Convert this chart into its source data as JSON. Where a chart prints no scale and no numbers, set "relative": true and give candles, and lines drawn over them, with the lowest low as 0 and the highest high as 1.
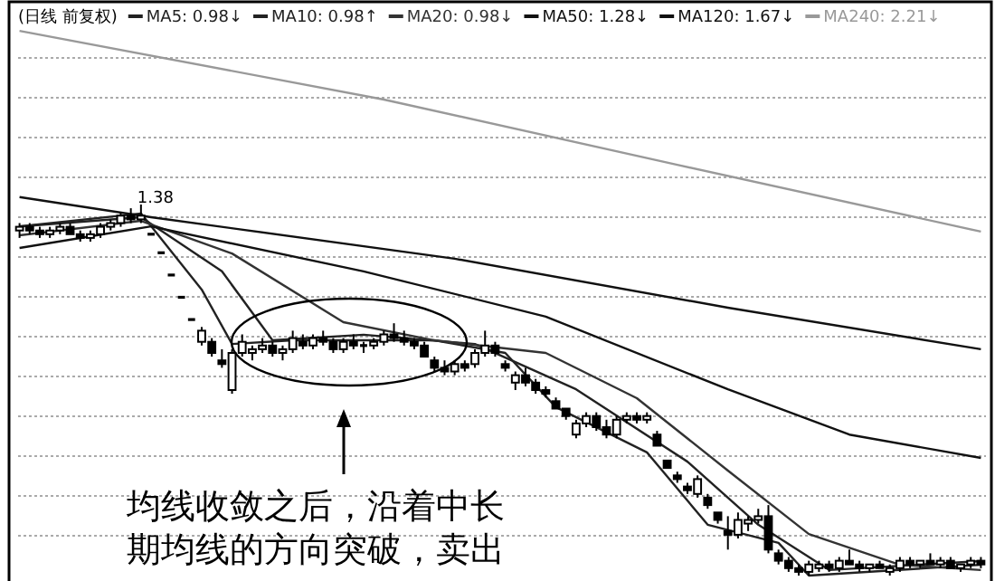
{
  "chart_data": {
    "type": "candlestick",
    "title": "(日线 前复权)",
    "relative": true,
    "grid": "y",
    "legend": "top left",
    "categories": [
      null,
      null,
      null,
      null,
      null,
      null,
      null,
      null,
      null,
      null,
      null,
      null,
      null,
      null,
      null,
      null,
      null,
      null,
      null,
      null,
      null,
      null,
      null,
      null,
      null,
      null,
      null,
      null,
      null,
      null,
      null,
      null,
      null,
      null,
      null,
      null,
      null,
      null,
      null,
      null,
      null,
      null,
      null,
      null,
      null,
      null,
      null,
      null,
      null,
      null,
      null,
      null,
      null,
      null,
      null,
      null,
      null,
      null,
      null,
      null,
      null,
      null,
      null,
      null,
      null,
      null,
      null,
      null,
      null,
      null,
      null,
      null,
      null,
      null,
      null,
      null,
      null,
      null,
      null,
      null,
      null,
      null,
      null,
      null,
      null,
      null,
      null,
      null,
      null,
      null,
      null,
      null,
      null,
      null,
      null,
      null
    ],
    "ohlc": [
      [
        0.93,
        0.95,
        0.91,
        0.94
      ],
      [
        0.94,
        0.95,
        0.92,
        0.93
      ],
      [
        0.93,
        0.94,
        0.91,
        0.92
      ],
      [
        0.92,
        0.94,
        0.91,
        0.93
      ],
      [
        0.93,
        0.95,
        0.92,
        0.94
      ],
      [
        0.94,
        0.95,
        0.92,
        0.92
      ],
      [
        0.92,
        0.93,
        0.9,
        0.91
      ],
      [
        0.91,
        0.93,
        0.9,
        0.92
      ],
      [
        0.92,
        0.95,
        0.91,
        0.94
      ],
      [
        0.94,
        0.96,
        0.93,
        0.95
      ],
      [
        0.95,
        0.98,
        0.94,
        0.97
      ],
      [
        0.97,
        0.99,
        0.95,
        0.96
      ],
      [
        0.96,
        1.0,
        0.95,
        0.97
      ],
      [
        0.92,
        0.92,
        0.92,
        0.92
      ],
      [
        0.87,
        0.87,
        0.87,
        0.87
      ],
      [
        0.81,
        0.81,
        0.81,
        0.81
      ],
      [
        0.75,
        0.75,
        0.75,
        0.75
      ],
      [
        0.69,
        0.69,
        0.69,
        0.69
      ],
      [
        0.63,
        0.67,
        0.62,
        0.66
      ],
      [
        0.63,
        0.64,
        0.59,
        0.6
      ],
      [
        0.58,
        0.61,
        0.56,
        0.57
      ],
      [
        0.5,
        0.61,
        0.49,
        0.6
      ],
      [
        0.6,
        0.65,
        0.59,
        0.63
      ],
      [
        0.6,
        0.62,
        0.58,
        0.61
      ],
      [
        0.61,
        0.64,
        0.6,
        0.62
      ],
      [
        0.62,
        0.63,
        0.59,
        0.6
      ],
      [
        0.6,
        0.62,
        0.58,
        0.61
      ],
      [
        0.61,
        0.66,
        0.6,
        0.64
      ],
      [
        0.63,
        0.65,
        0.61,
        0.62
      ],
      [
        0.62,
        0.65,
        0.61,
        0.64
      ],
      [
        0.64,
        0.66,
        0.62,
        0.63
      ],
      [
        0.63,
        0.64,
        0.6,
        0.61
      ],
      [
        0.61,
        0.64,
        0.6,
        0.63
      ],
      [
        0.63,
        0.65,
        0.61,
        0.62
      ],
      [
        0.62,
        0.63,
        0.6,
        0.62
      ],
      [
        0.62,
        0.64,
        0.61,
        0.63
      ],
      [
        0.63,
        0.66,
        0.62,
        0.65
      ],
      [
        0.65,
        0.68,
        0.63,
        0.64
      ],
      [
        0.64,
        0.66,
        0.62,
        0.63
      ],
      [
        0.63,
        0.64,
        0.61,
        0.62
      ],
      [
        0.62,
        0.63,
        0.59,
        0.59
      ],
      [
        0.58,
        0.59,
        0.55,
        0.56
      ],
      [
        0.56,
        0.58,
        0.54,
        0.55
      ],
      [
        0.55,
        0.58,
        0.54,
        0.57
      ],
      [
        0.57,
        0.58,
        0.55,
        0.56
      ],
      [
        0.57,
        0.61,
        0.56,
        0.6
      ],
      [
        0.6,
        0.66,
        0.59,
        0.62
      ],
      [
        0.62,
        0.63,
        0.59,
        0.6
      ],
      [
        0.57,
        0.58,
        0.55,
        0.56
      ],
      [
        0.52,
        0.55,
        0.5,
        0.54
      ],
      [
        0.54,
        0.56,
        0.51,
        0.52
      ],
      [
        0.52,
        0.53,
        0.49,
        0.5
      ],
      [
        0.5,
        0.51,
        0.48,
        0.49
      ],
      [
        0.47,
        0.48,
        0.45,
        0.45
      ],
      [
        0.45,
        0.45,
        0.42,
        0.43
      ],
      [
        0.38,
        0.42,
        0.37,
        0.41
      ],
      [
        0.41,
        0.44,
        0.4,
        0.43
      ],
      [
        0.43,
        0.44,
        0.39,
        0.4
      ],
      [
        0.4,
        0.42,
        0.37,
        0.38
      ],
      [
        0.38,
        0.43,
        0.37,
        0.42
      ],
      [
        0.42,
        0.44,
        0.41,
        0.43
      ],
      [
        0.43,
        0.44,
        0.41,
        0.42
      ],
      [
        0.42,
        0.44,
        0.41,
        0.43
      ],
      [
        0.38,
        0.39,
        0.35,
        0.35
      ],
      [
        0.31,
        0.31,
        0.29,
        0.29
      ],
      [
        0.27,
        0.28,
        0.25,
        0.26
      ],
      [
        0.24,
        0.25,
        0.22,
        0.23
      ],
      [
        0.22,
        0.27,
        0.21,
        0.26
      ],
      [
        0.21,
        0.22,
        0.18,
        0.19
      ],
      [
        0.17,
        0.17,
        0.14,
        0.15
      ],
      [
        0.12,
        0.16,
        0.07,
        0.11
      ],
      [
        0.11,
        0.17,
        0.1,
        0.15
      ],
      [
        0.14,
        0.16,
        0.12,
        0.15
      ],
      [
        0.15,
        0.18,
        0.14,
        0.16
      ],
      [
        0.16,
        0.19,
        0.06,
        0.07
      ],
      [
        0.06,
        0.07,
        0.03,
        0.04
      ],
      [
        0.04,
        0.05,
        0.01,
        0.02
      ],
      [
        0.02,
        0.03,
        0.0,
        0.01
      ],
      [
        0.01,
        0.04,
        0.0,
        0.03
      ],
      [
        0.02,
        0.04,
        0.01,
        0.03
      ],
      [
        0.03,
        0.04,
        0.01,
        0.02
      ],
      [
        0.02,
        0.05,
        0.01,
        0.04
      ],
      [
        0.04,
        0.07,
        0.03,
        0.03
      ],
      [
        0.03,
        0.04,
        0.01,
        0.02
      ],
      [
        0.02,
        0.03,
        0.01,
        0.03
      ],
      [
        0.03,
        0.04,
        0.02,
        0.02
      ],
      [
        0.01,
        0.03,
        0.0,
        0.02
      ],
      [
        0.02,
        0.05,
        0.01,
        0.04
      ],
      [
        0.04,
        0.05,
        0.02,
        0.03
      ],
      [
        0.03,
        0.04,
        0.02,
        0.04
      ],
      [
        0.04,
        0.06,
        0.03,
        0.03
      ],
      [
        0.03,
        0.05,
        0.02,
        0.04
      ],
      [
        0.04,
        0.05,
        0.02,
        0.02
      ],
      [
        0.02,
        0.03,
        0.01,
        0.03
      ],
      [
        0.03,
        0.05,
        0.02,
        0.04
      ],
      [
        0.04,
        0.05,
        0.02,
        0.03
      ]
    ],
    "series": [
      {
        "name": "MA5: 0.98↓",
        "type": "line",
        "color": "#222222",
        "values": [
          0.941,
          null,
          null,
          null,
          null,
          null,
          null,
          null,
          null,
          null,
          null,
          null,
          0.976,
          null,
          null,
          null,
          null,
          null,
          0.771,
          null,
          null,
          0.624,
          null,
          null,
          null,
          null,
          null,
          0.634,
          null,
          null,
          null,
          null,
          null,
          null,
          null,
          null,
          null,
          null,
          null,
          null,
          null,
          0.634,
          null,
          null,
          null,
          null,
          null,
          null,
          0.6,
          null,
          null,
          null,
          null,
          0.454,
          null,
          null,
          null,
          null,
          null,
          null,
          null,
          null,
          0.332,
          null,
          null,
          null,
          null,
          null,
          0.137,
          null,
          null,
          null,
          null,
          null,
          null,
          0.088,
          null,
          null,
          0,
          null,
          null,
          null,
          null,
          null,
          null,
          null,
          null,
          null,
          null,
          null,
          null,
          null,
          null,
          null,
          null,
          0.029
        ]
      },
      {
        "name": "MA10: 0.98↑",
        "type": "line",
        "color": "#222222",
        "values": [
          0.941,
          null,
          null,
          null,
          null,
          null,
          null,
          null,
          null,
          null,
          null,
          null,
          0.966,
          null,
          null,
          null,
          null,
          null,
          null,
          null,
          0.82,
          null,
          null,
          null,
          null,
          0.634,
          null,
          null,
          null,
          null,
          null,
          null,
          null,
          null,
          0.649,
          null,
          null,
          null,
          null,
          null,
          null,
          null,
          null,
          null,
          null,
          0.624,
          null,
          null,
          null,
          null,
          null,
          null,
          null,
          null,
          null,
          0.502,
          null,
          null,
          null,
          null,
          null,
          null,
          null,
          null,
          null,
          null,
          0.307,
          null,
          null,
          null,
          null,
          null,
          null,
          0.137,
          null,
          null,
          null,
          null,
          null,
          null,
          0.015,
          null,
          null,
          null,
          null,
          null,
          null,
          null,
          null,
          null,
          null,
          null,
          null,
          null,
          null,
          0.039
        ]
      },
      {
        "name": "MA20: 0.98↓",
        "type": "line",
        "color": "#333333",
        "values": [
          0.917,
          null,
          null,
          null,
          null,
          null,
          null,
          null,
          null,
          null,
          null,
          null,
          0.956,
          null,
          null,
          null,
          null,
          null,
          null,
          null,
          null,
          0.868,
          null,
          null,
          null,
          null,
          null,
          null,
          null,
          null,
          null,
          null,
          0.683,
          null,
          null,
          null,
          null,
          null,
          null,
          null,
          null,
          0.634,
          null,
          null,
          null,
          null,
          null,
          null,
          null,
          null,
          null,
          null,
          0.6,
          null,
          null,
          null,
          null,
          null,
          null,
          null,
          null,
          0.478,
          null,
          null,
          null,
          null,
          null,
          null,
          null,
          null,
          0.283,
          null,
          null,
          null,
          null,
          null,
          null,
          null,
          0.112,
          null,
          null,
          null,
          null,
          null,
          null,
          null,
          null,
          0.029,
          null,
          null,
          null,
          null,
          null,
          null,
          null,
          0.015
        ]
      },
      {
        "name": "MA50: 1.28↓",
        "type": "line",
        "color": "#111111",
        "values": [
          0.883,
          null,
          null,
          null,
          null,
          null,
          null,
          null,
          null,
          null,
          null,
          null,
          null,
          0.941,
          null,
          null,
          null,
          null,
          null,
          null,
          null,
          null,
          null,
          null,
          null,
          null,
          null,
          null,
          null,
          null,
          null,
          null,
          null,
          null,
          0.82,
          null,
          null,
          null,
          null,
          null,
          null,
          null,
          null,
          null,
          null,
          null,
          null,
          null,
          null,
          null,
          null,
          null,
          0.698,
          null,
          null,
          null,
          null,
          null,
          null,
          null,
          null,
          null,
          null,
          null,
          null,
          null,
          null,
          null,
          null,
          null,
          0.502,
          null,
          null,
          null,
          null,
          null,
          null,
          null,
          null,
          null,
          null,
          null,
          0.38,
          null,
          null,
          null,
          null,
          null,
          null,
          null,
          null,
          null,
          null,
          null,
          null,
          0.317
        ]
      },
      {
        "name": "MA120: 1.67↓",
        "type": "line",
        "color": "#111111",
        "values": [
          1.02,
          null,
          null,
          null,
          null,
          null,
          null,
          null,
          null,
          null,
          null,
          null,
          null,
          0.966,
          null,
          null,
          null,
          null,
          null,
          null,
          null,
          null,
          null,
          null,
          null,
          null,
          null,
          null,
          null,
          null,
          null,
          null,
          null,
          null,
          null,
          null,
          null,
          null,
          null,
          null,
          null,
          null,
          null,
          0.854,
          null,
          null,
          null,
          null,
          null,
          null,
          null,
          null,
          null,
          null,
          null,
          null,
          null,
          null,
          null,
          null,
          null,
          null,
          null,
          null,
          null,
          null,
          null,
          null,
          null,
          null,
          0.722,
          null,
          null,
          null,
          null,
          null,
          null,
          null,
          null,
          null,
          null,
          null,
          null,
          null,
          null,
          null,
          null,
          null,
          null,
          null,
          null,
          null,
          null,
          null,
          null,
          0.61
        ]
      },
      {
        "name": "MA240: 2.21↓",
        "type": "line",
        "color": "#999999",
        "values": [
          1.468,
          null,
          null,
          null,
          null,
          null,
          null,
          null,
          null,
          null,
          null,
          null,
          null,
          null,
          null,
          null,
          null,
          null,
          null,
          null,
          null,
          null,
          null,
          null,
          null,
          null,
          null,
          null,
          null,
          null,
          null,
          null,
          null,
          null,
          null,
          null,
          1.283,
          null,
          null,
          null,
          null,
          null,
          null,
          null,
          null,
          null,
          null,
          null,
          null,
          null,
          null,
          null,
          null,
          null,
          null,
          null,
          null,
          null,
          null,
          null,
          null,
          null,
          null,
          null,
          null,
          1.107,
          null,
          null,
          null,
          null,
          null,
          null,
          null,
          null,
          null,
          null,
          null,
          null,
          null,
          null,
          null,
          null,
          null,
          null,
          null,
          null,
          null,
          null,
          null,
          null,
          null,
          null,
          null,
          null,
          null,
          0.927
        ]
      }
    ],
    "annotations": [
      "1.38",
      "均线收敛之后，沿着中长期均线的方向突破，卖出"
    ]
  }
}
